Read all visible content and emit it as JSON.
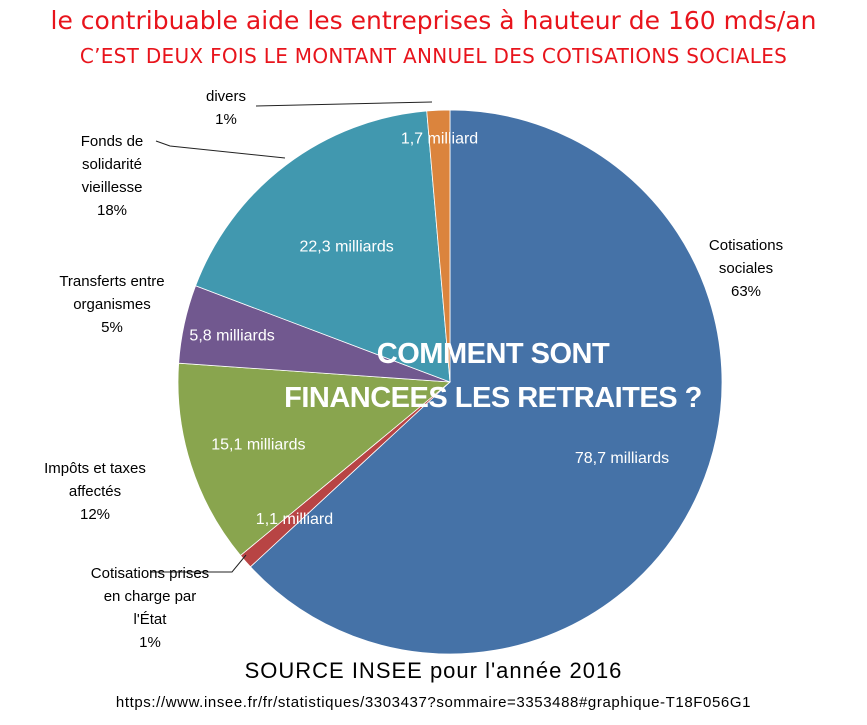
{
  "header": {
    "line1": "le contribuable aide les entreprises à hauteur de 160 mds/an",
    "line2": "C’EST DEUX FOIS LE MONTANT ANNUEL DES COTISATIONS SOCIALES"
  },
  "overlay": {
    "line1": "COMMENT SONT",
    "line2": "FINANCEES LES RETRAITES ?"
  },
  "footer": {
    "source": "SOURCE INSEE pour l'année 2016",
    "url": "https://www.insee.fr/fr/statistiques/3303437?sommaire=3353488#graphique-T18F056G1"
  },
  "chart_data": {
    "type": "pie",
    "title": "",
    "slices": [
      {
        "category": [
          "Cotisations",
          "sociales"
        ],
        "percent": "63%",
        "value_label": "78,7 milliards",
        "value": 78.7,
        "color": "#4572a7"
      },
      {
        "category": [
          "Cotisations prises",
          "en charge par",
          "l'État"
        ],
        "percent": "1%",
        "value_label": "1,1 milliard",
        "value": 1.1,
        "color": "#b84444"
      },
      {
        "category": [
          "Impôts et taxes",
          "affectés"
        ],
        "percent": "12%",
        "value_label": "15,1 milliards",
        "value": 15.1,
        "color": "#89a54e"
      },
      {
        "category": [
          "Transferts entre",
          "organismes"
        ],
        "percent": "5%",
        "value_label": "5,8 milliards",
        "value": 5.8,
        "color": "#71588f"
      },
      {
        "category": [
          "Fonds de",
          "solidarité",
          "vieillesse"
        ],
        "percent": "18%",
        "value_label": "22,3 milliards",
        "value": 22.3,
        "color": "#4198af"
      },
      {
        "category": [
          "divers"
        ],
        "percent": "1%",
        "value_label": "1,7 milliard",
        "value": 1.7,
        "color": "#db843d"
      }
    ]
  }
}
